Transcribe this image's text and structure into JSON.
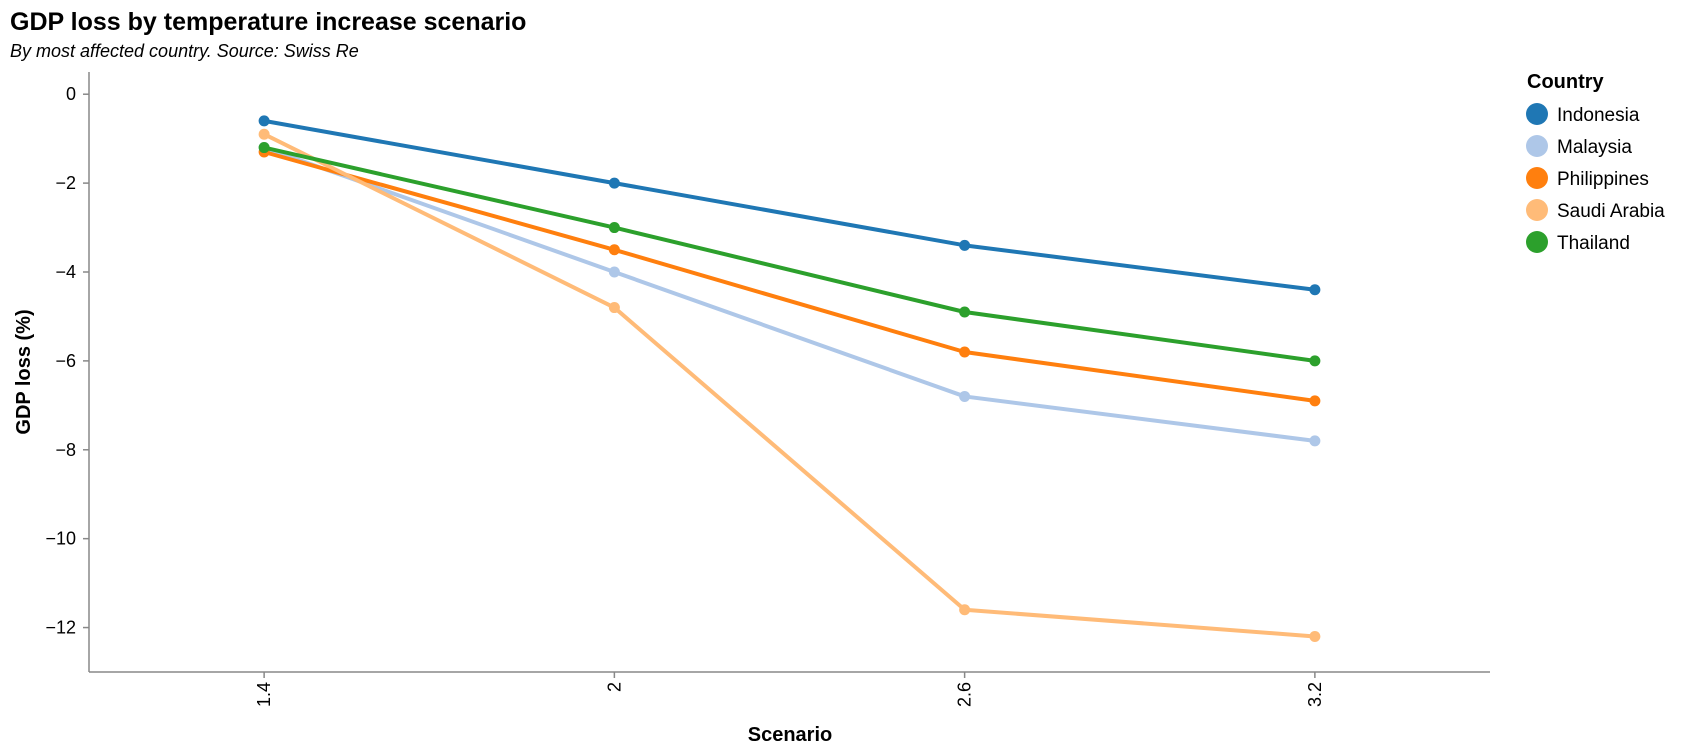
{
  "chart_data": {
    "type": "line",
    "title": "GDP loss by temperature increase scenario",
    "subtitle": "By most affected country. Source: Swiss Re",
    "xlabel": "Scenario",
    "ylabel": "GDP loss (%)",
    "x": [
      1.4,
      2,
      2.6,
      3.2
    ],
    "x_tick_labels": [
      "1.4",
      "2",
      "2.6",
      "3.2"
    ],
    "y_ticks": [
      0,
      -2,
      -4,
      -6,
      -8,
      -10,
      -12
    ],
    "y_tick_labels": [
      "0",
      "−2",
      "−4",
      "−6",
      "−8",
      "−10",
      "−12"
    ],
    "xlim": [
      1.1,
      3.5
    ],
    "ylim": [
      -13,
      0.5
    ],
    "grid": false,
    "legend": {
      "title": "Country",
      "position": "right"
    },
    "series": [
      {
        "name": "Indonesia",
        "color": "#1f77b4",
        "values": [
          -0.6,
          -2.0,
          -3.4,
          -4.4
        ]
      },
      {
        "name": "Malaysia",
        "color": "#aec7e8",
        "values": [
          -1.2,
          -4.0,
          -6.8,
          -7.8
        ]
      },
      {
        "name": "Philippines",
        "color": "#ff7f0e",
        "values": [
          -1.3,
          -3.5,
          -5.8,
          -6.9
        ]
      },
      {
        "name": "Saudi Arabia",
        "color": "#ffbb78",
        "values": [
          -0.9,
          -4.8,
          -11.6,
          -12.2
        ]
      },
      {
        "name": "Thailand",
        "color": "#2ca02c",
        "values": [
          -1.2,
          -3.0,
          -4.9,
          -6.0
        ]
      }
    ]
  }
}
